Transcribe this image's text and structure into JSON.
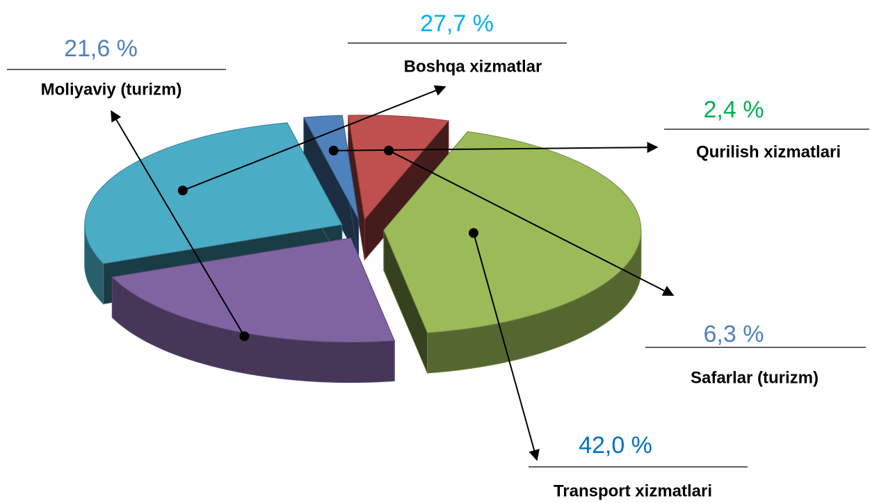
{
  "chart_data": {
    "type": "pie",
    "categories": [
      "Boshqa xizmatlar",
      "Qurilish xizmatlari",
      "Safarlar (turizm)",
      "Transport xizmatlari",
      "Moliyaviy (turizm)"
    ],
    "values": [
      27.7,
      2.4,
      6.3,
      42.0,
      21.6
    ],
    "value_labels": [
      "27,7 %",
      "2,4 %",
      "6,3 %",
      "42,0 %",
      "21,6 %"
    ],
    "colors": [
      "#4bacc6",
      "#4f81bd",
      "#c0504d",
      "#9bbb59",
      "#8064a2"
    ],
    "label_colors": [
      "#00b0f0",
      "#00b050",
      "#4f81bd",
      "#0070c0",
      "#4f81bd"
    ]
  }
}
